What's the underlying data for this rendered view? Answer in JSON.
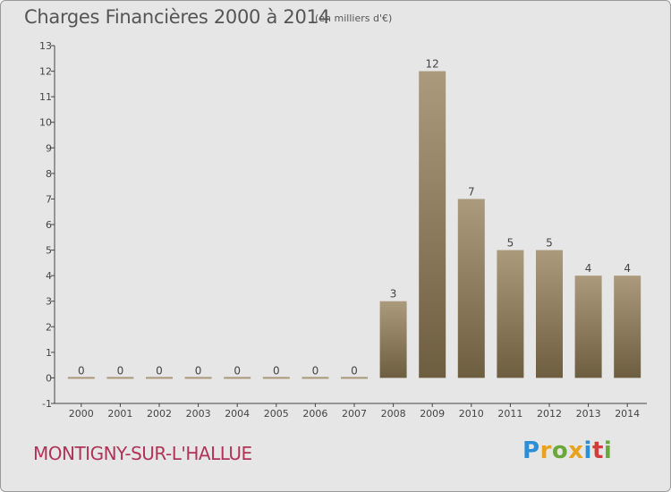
{
  "header": {
    "title": "Charges Financières 2000 à 2014",
    "unit_note": "(en milliers d'€)"
  },
  "footer": {
    "commune": "MONTIGNY-SUR-L'HALLUE",
    "logo_text": "Proxiti",
    "logo_colors": [
      "#2a8fd6",
      "#e8a21b",
      "#6aa83a",
      "#e8a21b",
      "#2a8fd6",
      "#d43b3b",
      "#6aa83a"
    ]
  },
  "colors": {
    "bar_top": "#ab9a7c",
    "bar_bottom": "#6e5e40",
    "zero_bar": "#a89878",
    "axis": "#444444",
    "label": "#444444"
  },
  "chart_data": {
    "type": "bar",
    "categories": [
      "2000",
      "2001",
      "2002",
      "2003",
      "2004",
      "2005",
      "2006",
      "2007",
      "2008",
      "2009",
      "2010",
      "2011",
      "2012",
      "2013",
      "2014"
    ],
    "values": [
      0,
      0,
      0,
      0,
      0,
      0,
      0,
      0,
      3,
      12,
      7,
      5,
      5,
      4,
      4
    ],
    "data_labels": [
      "0",
      "0",
      "0",
      "0",
      "0",
      "0",
      "0",
      "0",
      "3",
      "12",
      "7",
      "5",
      "5",
      "4",
      "4"
    ],
    "title": "Charges Financières 2000 à 2014",
    "xlabel": "",
    "ylabel": "",
    "ylim": [
      -1,
      13
    ],
    "yticks": [
      -1,
      0,
      1,
      2,
      3,
      4,
      5,
      6,
      7,
      8,
      9,
      10,
      11,
      12,
      13
    ],
    "grid": false,
    "legend": "none"
  }
}
